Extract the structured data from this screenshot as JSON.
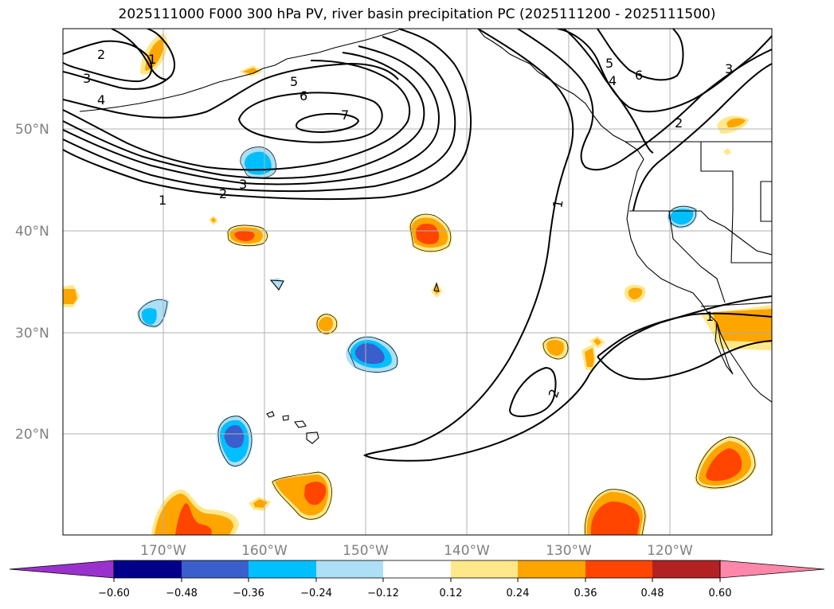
{
  "title": "2025111000 F000 300 hPa PV, river basin precipitation PC (2025111200 - 2025111500)",
  "lat_labels": [
    "50°N",
    "40°N",
    "30°N",
    "20°N"
  ],
  "lon_labels": [
    "170°W",
    "160°W",
    "150°W",
    "140°W",
    "130°W",
    "120°W"
  ],
  "colorbar": {
    "ticks": [
      "−0.60",
      "−0.48",
      "−0.36",
      "−0.24",
      "−0.12",
      "0.12",
      "0.24",
      "0.36",
      "0.48",
      "0.60"
    ],
    "colors": [
      "#9932CC",
      "#00008B",
      "#3A5FCD",
      "#00BFFF",
      "#ADDFF5",
      "#FFFFFF",
      "#FFE88A",
      "#FFA500",
      "#FF4500",
      "#B22222",
      "#FF88AA"
    ]
  },
  "contour_labels": [
    "2",
    "3",
    "4",
    "5",
    "6",
    "7",
    "1",
    "2",
    "3",
    "1",
    "5",
    "4",
    "6",
    "3",
    "2",
    "1",
    "2",
    "1"
  ],
  "colors": {
    "orange": "#FFA500",
    "red_orange": "#FF4500",
    "light_yellow": "#FFE88A",
    "light_blue": "#ADDFF5",
    "sky_blue": "#00BFFF",
    "royal_blue": "#3A5FCD"
  }
}
